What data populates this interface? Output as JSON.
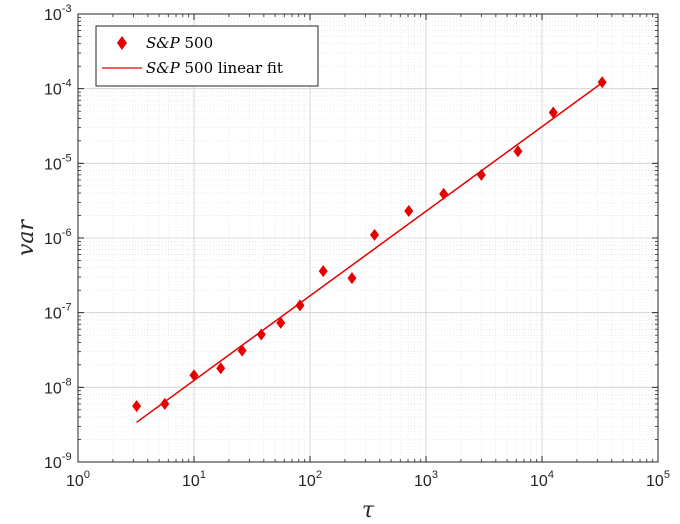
{
  "chart_data": {
    "type": "scatter",
    "title": "",
    "xlabel": "τ",
    "ylabel": "var",
    "xscale": "log",
    "yscale": "log",
    "xlim": [
      1,
      100000
    ],
    "ylim": [
      1e-09,
      0.001
    ],
    "grid": true,
    "minor_grid": true,
    "legend_position": "top-left",
    "x_ticks": [
      {
        "base": "10",
        "exp": "0",
        "value": 1
      },
      {
        "base": "10",
        "exp": "1",
        "value": 10
      },
      {
        "base": "10",
        "exp": "2",
        "value": 100
      },
      {
        "base": "10",
        "exp": "3",
        "value": 1000
      },
      {
        "base": "10",
        "exp": "4",
        "value": 10000
      },
      {
        "base": "10",
        "exp": "5",
        "value": 100000
      }
    ],
    "y_ticks": [
      {
        "base": "10",
        "exp": "-9",
        "value": 1e-09
      },
      {
        "base": "10",
        "exp": "-8",
        "value": 1e-08
      },
      {
        "base": "10",
        "exp": "-7",
        "value": 1e-07
      },
      {
        "base": "10",
        "exp": "-6",
        "value": 1e-06
      },
      {
        "base": "10",
        "exp": "-5",
        "value": 1e-05
      },
      {
        "base": "10",
        "exp": "-4",
        "value": 0.0001
      },
      {
        "base": "10",
        "exp": "-3",
        "value": 0.001
      }
    ],
    "series": [
      {
        "name": "S&P 500",
        "name_italic": "S&P",
        "name_rest": " 500",
        "marker": "diamond",
        "color": "#e60000",
        "x": [
          3.2,
          5.6,
          10,
          17,
          26,
          38,
          56,
          82,
          130,
          230,
          360,
          710,
          1420,
          3000,
          6200,
          12500,
          33000
        ],
        "y": [
          5.6e-09,
          6e-09,
          1.45e-08,
          1.8e-08,
          3.1e-08,
          5.1e-08,
          7.3e-08,
          1.25e-07,
          3.6e-07,
          2.9e-07,
          1.1e-06,
          2.3e-06,
          3.9e-06,
          7e-06,
          1.45e-05,
          4.8e-05,
          0.000122
        ]
      },
      {
        "name": "S&P 500 linear fit",
        "name_italic": "S&P",
        "name_rest": " 500 linear fit",
        "marker": "line",
        "color": "#e60000",
        "x": [
          3.2,
          33000
        ],
        "y": [
          3.4e-09,
          0.00012
        ]
      }
    ]
  }
}
